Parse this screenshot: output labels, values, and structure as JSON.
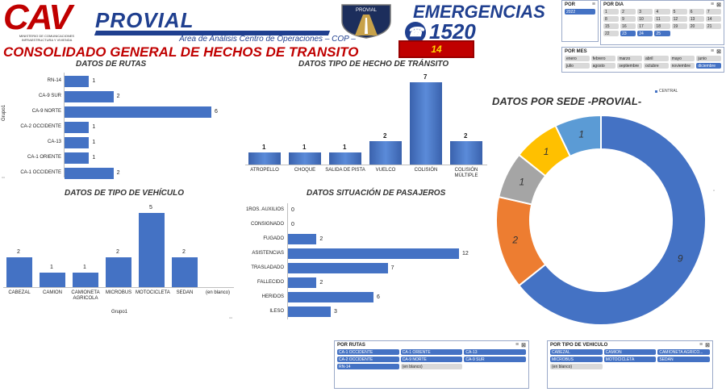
{
  "header": {
    "cav_logo": "CAV",
    "cav_subtitle": "MINISTERIO DE COMUNICACIONES INFRAESTRUCTURA Y VIVIENDA",
    "provial": "PROVIAL",
    "shield_text": "PROVIAL",
    "area": "Área de Análisis Centro de Operaciones – COP –",
    "title": "CONSOLIDADO GENERAL DE HECHOS DE TRANSITO",
    "emergencias": "EMERGENCIAS",
    "phone": "1520",
    "total": "14",
    "colors": {
      "red": "#c00000",
      "blue": "#1f3f8f",
      "bar": "#4472c4"
    }
  },
  "slicer_por": {
    "title": "POR",
    "items": [
      "2022"
    ]
  },
  "slicer_dia": {
    "title": "POR DIA",
    "items": [
      "1",
      "2",
      "3",
      "4",
      "5",
      "6",
      "7",
      "8",
      "9",
      "10",
      "11",
      "12",
      "13",
      "14",
      "15",
      "16",
      "17",
      "18",
      "19",
      "20",
      "21",
      "22",
      "23",
      "24",
      "25"
    ],
    "selected": [
      "23",
      "24",
      "25"
    ]
  },
  "slicer_mes": {
    "title": "POR MES",
    "items": [
      "enero",
      "febrero",
      "marzo",
      "abril",
      "mayo",
      "junio",
      "julio",
      "agosto",
      "septiembre",
      "octubre",
      "noviembre",
      "diciembre"
    ],
    "selected": [
      "diciembre"
    ]
  },
  "rutas": {
    "title": "DATOS DE RUTAS",
    "axis_label": "Grupo1",
    "categories": [
      "RN-14",
      "CA-9 SUR",
      "CA-9 NORTE",
      "CA-2 OCCIDENTE",
      "CA-13",
      "CA-1 ORIENTE",
      "CA-1 OCCIDENTE"
    ],
    "values": [
      1,
      2,
      6,
      1,
      1,
      1,
      2
    ]
  },
  "tipo_hecho": {
    "title": "DATOS TIPO DE HECHO DE TRÁNSITO",
    "categories": [
      "ATROPELLO",
      "CHOQUE",
      "SALIDA DE PISTA",
      "VUELCO",
      "COLISIÓN",
      "COLISIÓN MÚLTIPLE"
    ],
    "values": [
      1,
      1,
      1,
      2,
      7,
      2
    ]
  },
  "vehiculo": {
    "title": "DATOS DE TIPO DE VEHÍCULO",
    "axis_label": "Grupo1",
    "categories": [
      "CABEZAL",
      "CAMION",
      "CAMIONETA AGRICOLA",
      "MICROBUS",
      "MOTOCICLETA",
      "SEDAN",
      "(en blanco)"
    ],
    "values": [
      2,
      1,
      1,
      2,
      5,
      2,
      null
    ]
  },
  "pasajeros": {
    "title": "DATOS SITUACIÓN DE PASAJEROS",
    "categories": [
      "1ROS. AUXILIOS",
      "CONSIGNADO",
      "FUGADO",
      "ASISTENCIAS",
      "TRASLADADO",
      "FALLECIDO",
      "HERIDOS",
      "ILESO"
    ],
    "values": [
      0,
      0,
      2,
      12,
      7,
      2,
      6,
      3
    ]
  },
  "sede": {
    "title": "DATOS POR SEDE -PROVIAL-",
    "legend": "CENTRAL",
    "values": [
      9,
      2,
      1,
      1,
      1
    ],
    "colors": [
      "#4472c4",
      "#ed7d31",
      "#a5a5a5",
      "#ffc000",
      "#5b9bd5"
    ]
  },
  "slicer_rutas": {
    "title": "POR RUTAS",
    "items": [
      "CA-1 OCCIDENTE",
      "CA-1 ORIENTE",
      "CA-13",
      "CA-2 OCCIDENTE",
      "CA-9 NORTE",
      "CA-9 SUR",
      "RN-14",
      "(en blanco)"
    ]
  },
  "slicer_vehiculo": {
    "title": "POR TIPO DE VEHICULO",
    "items": [
      "CABEZAL",
      "CAMION",
      "CAMIONETA AGRICO...",
      "MICROBUS",
      "MOTOCICLETA",
      "SEDAN",
      "(en blanco)"
    ]
  },
  "chart_data": [
    {
      "type": "bar",
      "title": "DATOS DE RUTAS",
      "categories": [
        "RN-14",
        "CA-9 SUR",
        "CA-9 NORTE",
        "CA-2 OCCIDENTE",
        "CA-13",
        "CA-1 ORIENTE",
        "CA-1 OCCIDENTE"
      ],
      "values": [
        1,
        2,
        6,
        1,
        1,
        1,
        2
      ],
      "ylabel": "Grupo1"
    },
    {
      "type": "bar",
      "title": "DATOS TIPO DE HECHO DE TRÁNSITO",
      "categories": [
        "ATROPELLO",
        "CHOQUE",
        "SALIDA DE PISTA",
        "VUELCO",
        "COLISIÓN",
        "COLISIÓN MÚLTIPLE"
      ],
      "values": [
        1,
        1,
        1,
        2,
        7,
        2
      ]
    },
    {
      "type": "bar",
      "title": "DATOS DE TIPO DE VEHÍCULO",
      "categories": [
        "CABEZAL",
        "CAMION",
        "CAMIONETA AGRICOLA",
        "MICROBUS",
        "MOTOCICLETA",
        "SEDAN",
        "(en blanco)"
      ],
      "values": [
        2,
        1,
        1,
        2,
        5,
        2,
        null
      ],
      "xlabel": "Grupo1"
    },
    {
      "type": "bar",
      "title": "DATOS SITUACIÓN DE PASAJEROS",
      "categories": [
        "1ROS. AUXILIOS",
        "CONSIGNADO",
        "FUGADO",
        "ASISTENCIAS",
        "TRASLADADO",
        "FALLECIDO",
        "HERIDOS",
        "ILESO"
      ],
      "values": [
        0,
        0,
        2,
        12,
        7,
        2,
        6,
        3
      ]
    },
    {
      "type": "pie",
      "title": "DATOS POR SEDE -PROVIAL-",
      "values": [
        9,
        2,
        1,
        1,
        1
      ],
      "legend": [
        "CENTRAL"
      ]
    }
  ]
}
